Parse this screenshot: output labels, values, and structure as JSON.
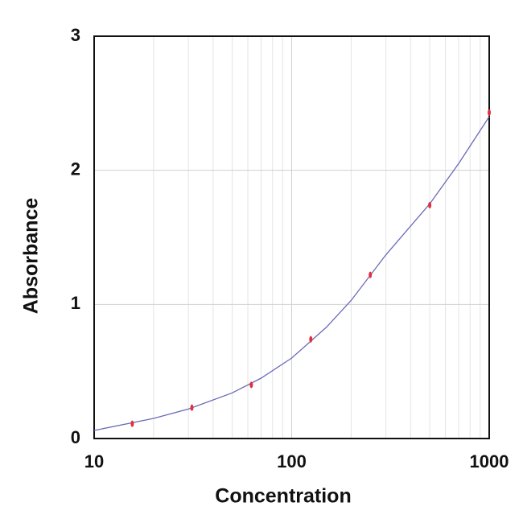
{
  "chart_data": {
    "type": "scatter",
    "x_label": "Concentration",
    "y_label": "Absorbance",
    "x": [
      15.6,
      31.25,
      62.5,
      125,
      250,
      500,
      1000
    ],
    "values": [
      0.11,
      0.23,
      0.4,
      0.74,
      1.22,
      1.74,
      2.43
    ],
    "color": "#e03040",
    "fit": {
      "x": [
        10,
        20,
        30,
        50,
        70,
        100,
        150,
        200,
        300,
        500,
        700,
        1000
      ],
      "values": [
        0.06,
        0.15,
        0.22,
        0.34,
        0.45,
        0.6,
        0.83,
        1.03,
        1.37,
        1.75,
        2.05,
        2.4
      ],
      "color": "#6a6ab8"
    },
    "xlog": true,
    "xlim": [
      10,
      1000
    ],
    "xticks": [
      10,
      100,
      1000
    ],
    "xminor": [
      20,
      30,
      40,
      50,
      60,
      70,
      80,
      90,
      200,
      300,
      400,
      500,
      600,
      700,
      800,
      900
    ],
    "ylim": [
      0,
      3
    ],
    "yticks": [
      0,
      1,
      2,
      3
    ],
    "grid": true
  }
}
